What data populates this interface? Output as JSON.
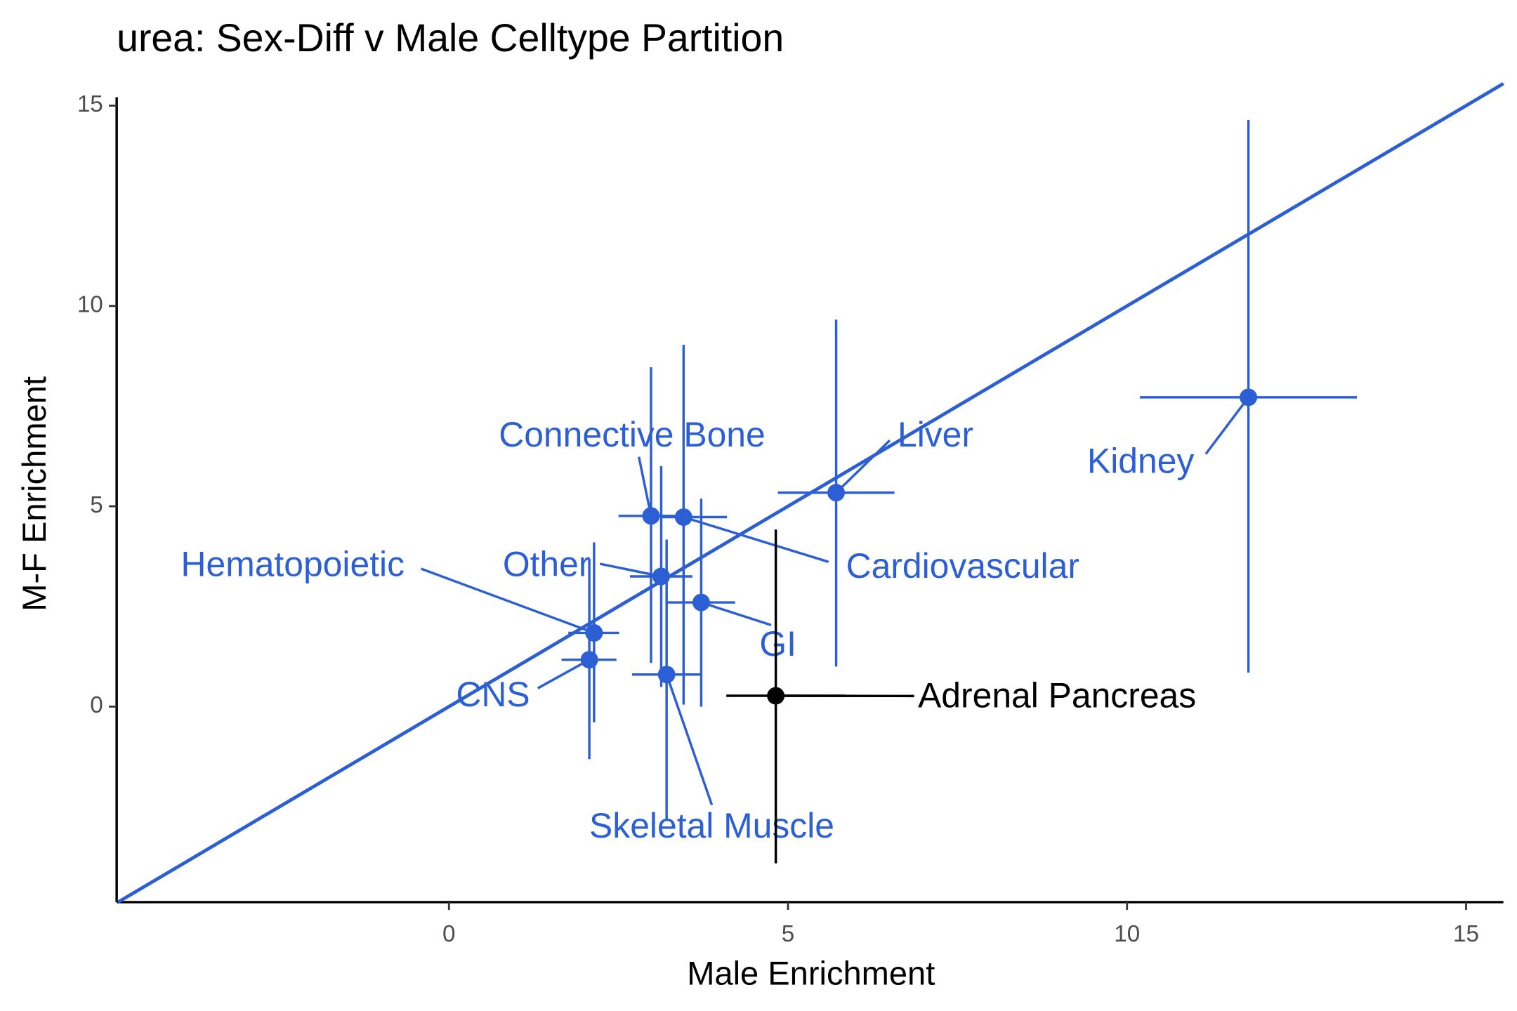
{
  "chart_data": {
    "type": "errorbar-scatter",
    "title": "urea: Sex-Diff v Male Celltype Partition",
    "x_label": "Male Enrichment",
    "y_label": "M-F Enrichment",
    "xlim": [
      -4.9,
      15.55
    ],
    "ylim": [
      -4.88,
      15.55
    ],
    "xticks": [
      0,
      5,
      10,
      15
    ],
    "yticks": [
      0,
      5,
      10,
      15
    ],
    "diagonal": true,
    "diagonal_color": "#2c5fd4",
    "points": [
      {
        "label": "Kidney",
        "color": "#2c5fd4",
        "x": 11.79,
        "y": 7.72,
        "xmin": 10.19,
        "xmax": 13.39,
        "ymin": 0.85,
        "ymax": 14.64
      },
      {
        "label": "Liver",
        "color": "#2c5fd4",
        "x": 5.71,
        "y": 5.34,
        "xmin": 4.85,
        "xmax": 6.57,
        "ymin": 1.0,
        "ymax": 9.66
      },
      {
        "label": "Connective Bone",
        "color": "#2c5fd4",
        "x": 2.98,
        "y": 4.76,
        "xmin": 2.5,
        "xmax": 3.49,
        "ymin": 1.09,
        "ymax": 8.47
      },
      {
        "label": "Cardiovascular",
        "color": "#2c5fd4",
        "x": 3.46,
        "y": 4.73,
        "xmin": 3.13,
        "xmax": 4.1,
        "ymin": 0.05,
        "ymax": 9.03
      },
      {
        "label": "Other",
        "color": "#2c5fd4",
        "x": 3.13,
        "y": 3.25,
        "xmin": 2.67,
        "xmax": 3.59,
        "ymin": 0.49,
        "ymax": 6.0
      },
      {
        "label": "GI",
        "color": "#2c5fd4",
        "x": 3.72,
        "y": 2.6,
        "xmin": 3.21,
        "xmax": 4.22,
        "ymin": 0.0,
        "ymax": 5.19
      },
      {
        "label": "Hematopoietic",
        "color": "#2c5fd4",
        "x": 2.14,
        "y": 1.84,
        "xmin": 1.76,
        "xmax": 2.51,
        "ymin": -0.39,
        "ymax": 4.1
      },
      {
        "label": "CNS",
        "color": "#2c5fd4",
        "x": 2.07,
        "y": 1.17,
        "xmin": 1.66,
        "xmax": 2.47,
        "ymin": -1.31,
        "ymax": 3.69
      },
      {
        "label": "Skeletal Muscle",
        "color": "#2c5fd4",
        "x": 3.21,
        "y": 0.8,
        "xmin": 2.7,
        "xmax": 3.73,
        "ymin": -2.86,
        "ymax": 4.17
      },
      {
        "label": "Adrenal Pancreas",
        "color": "#000000",
        "x": 4.82,
        "y": 0.27,
        "xmin": 4.09,
        "xmax": 5.85,
        "ymin": -3.91,
        "ymax": 4.42
      }
    ]
  }
}
